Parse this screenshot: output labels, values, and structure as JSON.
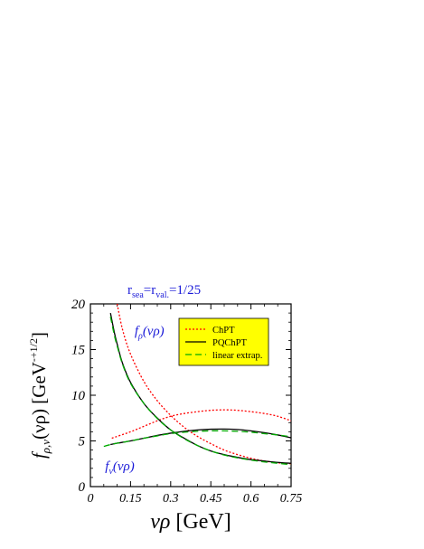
{
  "chart_data": {
    "type": "line",
    "title": {
      "lhs": "r",
      "lhs_sub": "sea",
      "eq1": "=r",
      "rhs_sub": "val.",
      "eq2": "=1/25"
    },
    "xlabel": {
      "var": "νρ",
      "unit": " [GeV]"
    },
    "ylabel": {
      "f": "f",
      "sub": "ρ,ν",
      "arg": "(νρ) [GeV",
      "sup": "-+1/2",
      "close": "]"
    },
    "xlim": [
      0,
      0.75
    ],
    "ylim": [
      0,
      20
    ],
    "x_ticks": [
      {
        "v": 0,
        "label": "0"
      },
      {
        "v": 0.15,
        "label": "0.15"
      },
      {
        "v": 0.3,
        "label": "0.3"
      },
      {
        "v": 0.45,
        "label": "0.45"
      },
      {
        "v": 0.6,
        "label": "0.6"
      },
      {
        "v": 0.75,
        "label": "0.75"
      }
    ],
    "y_ticks": [
      {
        "v": 0,
        "label": "0"
      },
      {
        "v": 5,
        "label": "5"
      },
      {
        "v": 10,
        "label": "10"
      },
      {
        "v": 15,
        "label": "15"
      },
      {
        "v": 20,
        "label": "20"
      }
    ],
    "curve_labels": [
      {
        "f": "f",
        "sub": "ρ",
        "arg": "(νρ)",
        "x": 0.165,
        "y": 16.6
      },
      {
        "f": "f",
        "sub": "ν",
        "arg": "(νρ)",
        "x": 0.055,
        "y": 1.8
      }
    ],
    "legend": {
      "placement": "top-right",
      "background": "#ffff00",
      "entries": [
        {
          "label": "ChPT",
          "color": "#ff0000",
          "dash": "2,2"
        },
        {
          "label": "PQChPT",
          "color": "#000000",
          "dash": ""
        },
        {
          "label": "linear extrap.",
          "color": "#00aa00",
          "dash": "7,4"
        }
      ]
    },
    "series": [
      {
        "name": "ChPT",
        "curve": "f_rho",
        "color": "#ff0000",
        "dash": "2,2",
        "points": [
          [
            0.1,
            20
          ],
          [
            0.12,
            17.2
          ],
          [
            0.15,
            14.5
          ],
          [
            0.2,
            11.5
          ],
          [
            0.25,
            9.4
          ],
          [
            0.3,
            7.8
          ],
          [
            0.35,
            6.5
          ],
          [
            0.4,
            5.5
          ],
          [
            0.45,
            4.7
          ],
          [
            0.5,
            4.0
          ],
          [
            0.55,
            3.5
          ],
          [
            0.6,
            3.1
          ],
          [
            0.65,
            2.8
          ],
          [
            0.7,
            2.6
          ],
          [
            0.75,
            2.5
          ]
        ]
      },
      {
        "name": "ChPT",
        "curve": "f_nu",
        "color": "#ff0000",
        "dash": "2,2",
        "points": [
          [
            0.08,
            5.3
          ],
          [
            0.15,
            6.0
          ],
          [
            0.2,
            6.6
          ],
          [
            0.25,
            7.2
          ],
          [
            0.3,
            7.7
          ],
          [
            0.35,
            8.0
          ],
          [
            0.4,
            8.2
          ],
          [
            0.45,
            8.35
          ],
          [
            0.5,
            8.4
          ],
          [
            0.55,
            8.35
          ],
          [
            0.6,
            8.2
          ],
          [
            0.65,
            8.0
          ],
          [
            0.7,
            7.7
          ],
          [
            0.75,
            7.2
          ]
        ]
      },
      {
        "name": "PQChPT",
        "curve": "f_rho",
        "color": "#000000",
        "dash": "",
        "points": [
          [
            0.075,
            19
          ],
          [
            0.09,
            16.8
          ],
          [
            0.1,
            15.6
          ],
          [
            0.12,
            13.5
          ],
          [
            0.15,
            11.4
          ],
          [
            0.2,
            9.1
          ],
          [
            0.25,
            7.5
          ],
          [
            0.3,
            6.2
          ],
          [
            0.35,
            5.3
          ],
          [
            0.4,
            4.5
          ],
          [
            0.45,
            3.9
          ],
          [
            0.5,
            3.5
          ],
          [
            0.55,
            3.2
          ],
          [
            0.6,
            2.95
          ],
          [
            0.65,
            2.8
          ],
          [
            0.7,
            2.65
          ],
          [
            0.75,
            2.55
          ]
        ]
      },
      {
        "name": "PQChPT",
        "curve": "f_nu",
        "color": "#000000",
        "dash": "",
        "points": [
          [
            0.075,
            4.6
          ],
          [
            0.1,
            4.75
          ],
          [
            0.15,
            5.0
          ],
          [
            0.2,
            5.3
          ],
          [
            0.25,
            5.6
          ],
          [
            0.3,
            5.85
          ],
          [
            0.35,
            6.05
          ],
          [
            0.4,
            6.2
          ],
          [
            0.45,
            6.28
          ],
          [
            0.5,
            6.3
          ],
          [
            0.55,
            6.25
          ],
          [
            0.6,
            6.1
          ],
          [
            0.65,
            5.9
          ],
          [
            0.7,
            5.65
          ],
          [
            0.75,
            5.35
          ]
        ]
      },
      {
        "name": "linear extrap.",
        "curve": "f_rho",
        "color": "#00aa00",
        "dash": "7,4",
        "points": [
          [
            0.075,
            18.6
          ],
          [
            0.09,
            16.5
          ],
          [
            0.1,
            15.4
          ],
          [
            0.12,
            13.4
          ],
          [
            0.15,
            11.3
          ],
          [
            0.2,
            9.1
          ],
          [
            0.25,
            7.45
          ],
          [
            0.3,
            6.2
          ],
          [
            0.35,
            5.25
          ],
          [
            0.4,
            4.5
          ],
          [
            0.45,
            3.9
          ],
          [
            0.5,
            3.45
          ],
          [
            0.55,
            3.15
          ],
          [
            0.6,
            2.9
          ],
          [
            0.65,
            2.7
          ],
          [
            0.7,
            2.55
          ],
          [
            0.75,
            2.4
          ]
        ]
      },
      {
        "name": "linear extrap.",
        "curve": "f_nu",
        "color": "#00aa00",
        "dash": "7,4",
        "points": [
          [
            0.05,
            4.4
          ],
          [
            0.075,
            4.6
          ],
          [
            0.1,
            4.75
          ],
          [
            0.15,
            5.0
          ],
          [
            0.2,
            5.3
          ],
          [
            0.25,
            5.55
          ],
          [
            0.3,
            5.8
          ],
          [
            0.35,
            5.95
          ],
          [
            0.4,
            6.05
          ],
          [
            0.45,
            6.1
          ],
          [
            0.5,
            6.1
          ],
          [
            0.55,
            6.05
          ],
          [
            0.6,
            5.95
          ],
          [
            0.65,
            5.8
          ],
          [
            0.7,
            5.65
          ],
          [
            0.75,
            5.45
          ]
        ]
      }
    ]
  }
}
